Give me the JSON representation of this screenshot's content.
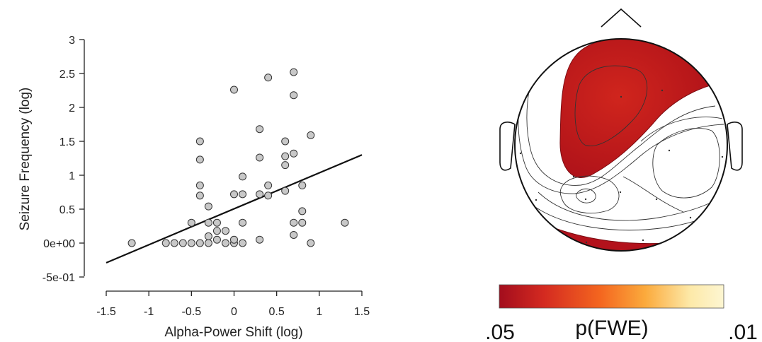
{
  "chart_data": [
    {
      "type": "scatter",
      "xlabel": "Alpha-Power Shift (log)",
      "ylabel": "Seizure Frequency (log)",
      "xlim": [
        -1.5,
        1.5
      ],
      "ylim": [
        -0.5,
        3
      ],
      "x_ticks": [
        "-1.5",
        "-1",
        "-0.5",
        "0",
        "0.5",
        "1",
        "1.5"
      ],
      "y_ticks": [
        "-5e-01",
        "0e+00",
        "0.5",
        "1",
        "1.5",
        "2",
        "2.5",
        "3"
      ],
      "points": [
        {
          "x": -1.2,
          "y": 0
        },
        {
          "x": -0.8,
          "y": 0
        },
        {
          "x": -0.7,
          "y": 0
        },
        {
          "x": -0.6,
          "y": 0
        },
        {
          "x": -0.5,
          "y": 0
        },
        {
          "x": -0.4,
          "y": 0
        },
        {
          "x": -0.3,
          "y": 0
        },
        {
          "x": -0.2,
          "y": 0.05
        },
        {
          "x": -0.1,
          "y": 0
        },
        {
          "x": 0,
          "y": 0
        },
        {
          "x": 0.1,
          "y": 0
        },
        {
          "x": 0,
          "y": 0.05
        },
        {
          "x": -0.5,
          "y": 0.3
        },
        {
          "x": -0.3,
          "y": 0.3
        },
        {
          "x": -0.2,
          "y": 0.3
        },
        {
          "x": -0.3,
          "y": 0.1
        },
        {
          "x": -0.2,
          "y": 0.18
        },
        {
          "x": -0.1,
          "y": 0.18
        },
        {
          "x": 0.1,
          "y": 0.3
        },
        {
          "x": 0.3,
          "y": 0.05
        },
        {
          "x": -0.3,
          "y": 0.54
        },
        {
          "x": -0.4,
          "y": 0.7
        },
        {
          "x": -0.4,
          "y": 0.85
        },
        {
          "x": -0.4,
          "y": 1.23
        },
        {
          "x": -0.4,
          "y": 1.5
        },
        {
          "x": 0,
          "y": 0.72
        },
        {
          "x": 0.1,
          "y": 0.72
        },
        {
          "x": 0.1,
          "y": 0.98
        },
        {
          "x": 0,
          "y": 2.26
        },
        {
          "x": 0.3,
          "y": 0.72
        },
        {
          "x": 0.4,
          "y": 0.7
        },
        {
          "x": 0.4,
          "y": 0.85
        },
        {
          "x": 0.3,
          "y": 1.26
        },
        {
          "x": 0.3,
          "y": 1.68
        },
        {
          "x": 0.4,
          "y": 2.44
        },
        {
          "x": 0.6,
          "y": 0.77
        },
        {
          "x": 0.6,
          "y": 1.15
        },
        {
          "x": 0.6,
          "y": 1.28
        },
        {
          "x": 0.6,
          "y": 1.5
        },
        {
          "x": 0.7,
          "y": 1.32
        },
        {
          "x": 0.7,
          "y": 2.18
        },
        {
          "x": 0.7,
          "y": 2.52
        },
        {
          "x": 0.7,
          "y": 0.3
        },
        {
          "x": 0.7,
          "y": 0.12
        },
        {
          "x": 0.8,
          "y": 0.3
        },
        {
          "x": 0.8,
          "y": 0.47
        },
        {
          "x": 0.8,
          "y": 0.85
        },
        {
          "x": 0.9,
          "y": 1.59
        },
        {
          "x": 0.9,
          "y": 0
        },
        {
          "x": 1.3,
          "y": 0.3
        }
      ],
      "regression_line": {
        "x": [
          -1.5,
          1.5
        ],
        "y": [
          -0.29,
          1.3
        ]
      },
      "point_color": "#c8c8c8",
      "grid": false
    },
    {
      "type": "heatmap",
      "subtype": "eeg-topography",
      "colorbar": {
        "label": "p(FWE)",
        "left_label": ".05",
        "right_label": ".01",
        "colors": [
          "#a30d1d",
          "#d42a20",
          "#f4661f",
          "#fbaa3c",
          "#fde9a8",
          "#fdf6d2"
        ]
      },
      "significant_color": "#b3121c"
    }
  ]
}
